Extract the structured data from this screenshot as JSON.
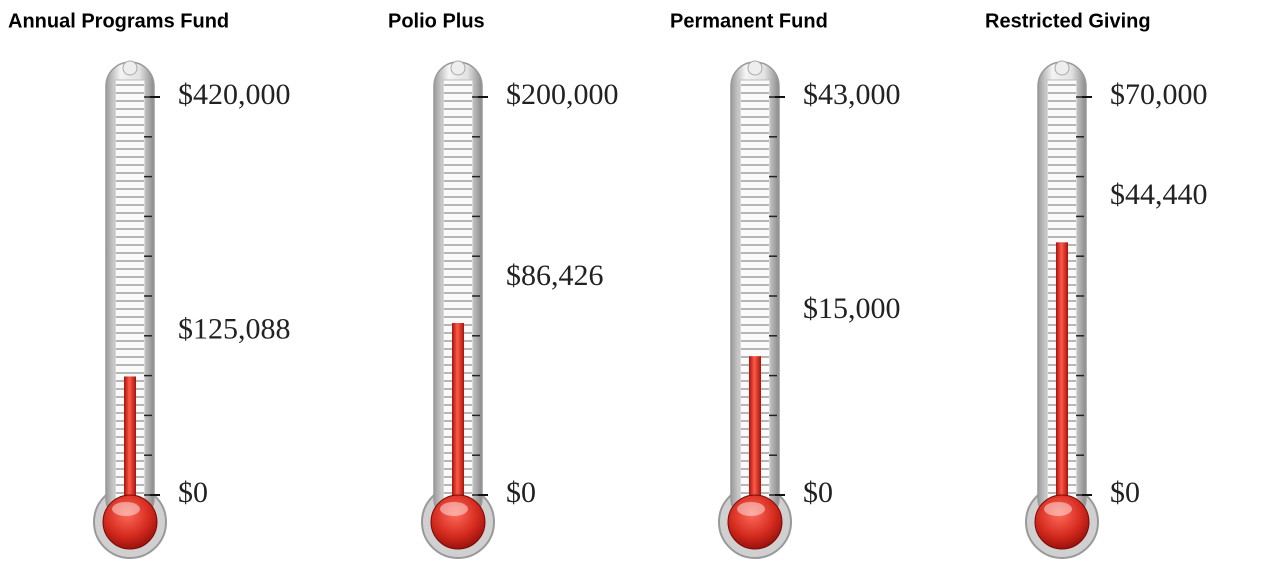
{
  "chart_data": [
    {
      "type": "thermometer",
      "title": "Annual Programs Fund",
      "values": [
        125088
      ],
      "value_labels": [
        "$125,088"
      ],
      "ylim": [
        0,
        420000
      ],
      "yticks": [
        {
          "value": 0,
          "label": "$0"
        },
        {
          "value": 420000,
          "label": "$420,000"
        }
      ],
      "color": "#d42a1e"
    },
    {
      "type": "thermometer",
      "title": "Polio Plus",
      "values": [
        86426
      ],
      "value_labels": [
        "$86,426"
      ],
      "ylim": [
        0,
        200000
      ],
      "yticks": [
        {
          "value": 0,
          "label": "$0"
        },
        {
          "value": 200000,
          "label": "$200,000"
        }
      ],
      "color": "#d42a1e"
    },
    {
      "type": "thermometer",
      "title": "Permanent Fund",
      "values": [
        15000
      ],
      "value_labels": [
        "$15,000"
      ],
      "ylim": [
        0,
        43000
      ],
      "yticks": [
        {
          "value": 0,
          "label": "$0"
        },
        {
          "value": 43000,
          "label": "$43,000"
        }
      ],
      "color": "#d42a1e"
    },
    {
      "type": "thermometer",
      "title": "Restricted Giving",
      "values": [
        44440
      ],
      "value_labels": [
        "$44,440"
      ],
      "ylim": [
        0,
        70000
      ],
      "yticks": [
        {
          "value": 0,
          "label": "$0"
        },
        {
          "value": 70000,
          "label": "$70,000"
        }
      ],
      "color": "#d42a1e"
    }
  ]
}
